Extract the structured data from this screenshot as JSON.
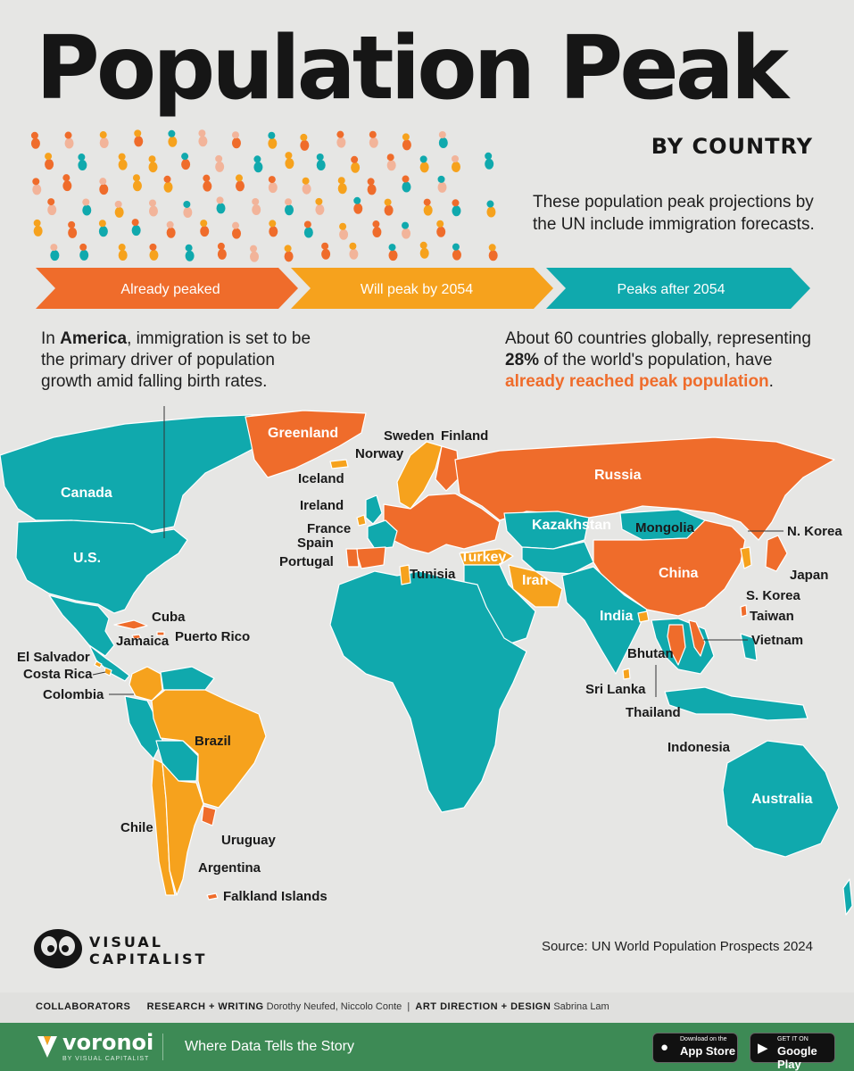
{
  "header": {
    "title": "Population Peak",
    "subtitle": "BY COUNTRY",
    "note": "These population peak projections by the UN include immigration forecasts."
  },
  "legend": [
    {
      "label": "Already peaked",
      "color": "#ef6c2b"
    },
    {
      "label": "Will peak by 2054",
      "color": "#f6a21d"
    },
    {
      "label": "Peaks after 2054",
      "color": "#10a9ad"
    }
  ],
  "callout_left": {
    "pre": "In ",
    "strong": "America",
    "post": ", immigration is set to be the primary driver of population growth amid  falling birth rates."
  },
  "callout_right": {
    "pre": "About 60 countries globally, representing ",
    "strong": "28%",
    "mid": " of the world's population, have ",
    "highlight": "already reached peak population",
    "end": "."
  },
  "map_labels": {
    "greenland": "Greenland",
    "sweden": "Sweden",
    "finland": "Finland",
    "norway": "Norway",
    "iceland": "Iceland",
    "ireland": "Ireland",
    "france": "France",
    "spain": "Spain",
    "portugal": "Portugal",
    "tunisia": "Tunisia",
    "turkey": "Turkey",
    "russia": "Russia",
    "kazakhstan": "Kazakhstan",
    "mongolia": "Mongolia",
    "china": "China",
    "n_korea": "N. Korea",
    "japan": "Japan",
    "s_korea": "S. Korea",
    "taiwan": "Taiwan",
    "vietnam": "Vietnam",
    "iran": "Iran",
    "india": "India",
    "bhutan": "Bhutan",
    "sri_lanka": "Sri Lanka",
    "thailand": "Thailand",
    "indonesia": "Indonesia",
    "australia": "Australia",
    "canada": "Canada",
    "us": "U.S.",
    "cuba": "Cuba",
    "jamaica": "Jamaica",
    "puerto_rico": "Puerto Rico",
    "el_salvador": "El Salvador",
    "costa_rica": "Costa Rica",
    "colombia": "Colombia",
    "brazil": "Brazil",
    "chile": "Chile",
    "uruguay": "Uruguay",
    "argentina": "Argentina",
    "falkland": "Falkland Islands"
  },
  "source": "Source: UN World Population Prospects 2024",
  "brand": {
    "line1": "VISUAL",
    "line2": "CAPITALIST"
  },
  "collaborators": {
    "label": "COLLABORATORS",
    "research_label": "RESEARCH + WRITING",
    "research_names": "Dorothy Neufed, Niccolo Conte",
    "sep": "|",
    "design_label": "ART DIRECTION + DESIGN",
    "design_names": "Sabrina Lam"
  },
  "footer": {
    "brand": "voronoi",
    "brand_sub": "BY VISUAL CAPITALIST",
    "tagline": "Where Data Tells the Story",
    "appstore_small": "Download on the",
    "appstore_big": "App Store",
    "googleplay_small": "GET IT ON",
    "googleplay_big": "Google Play"
  }
}
